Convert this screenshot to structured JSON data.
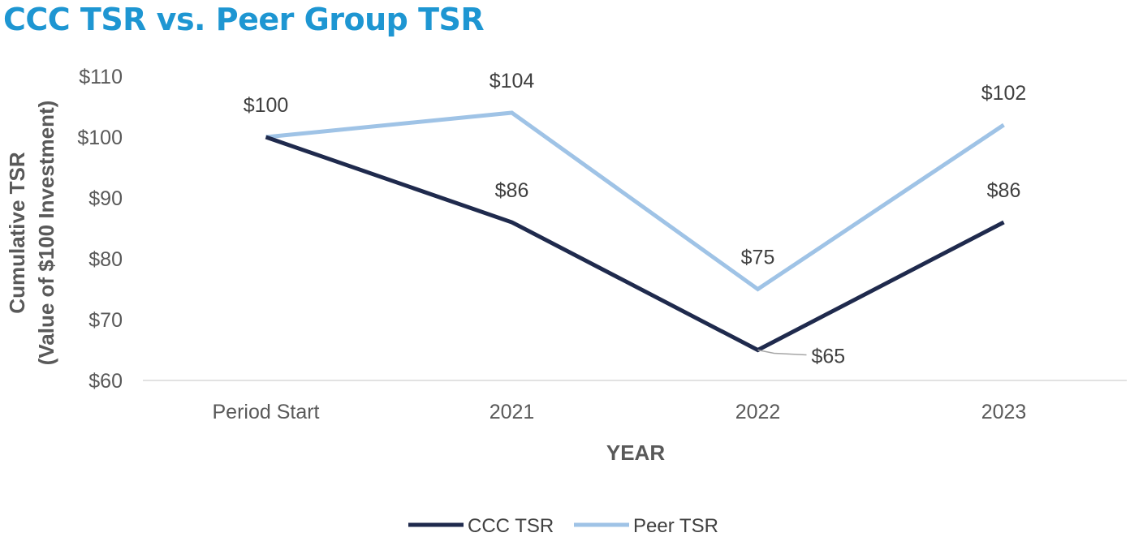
{
  "chart_data": {
    "type": "line",
    "title": "CCC TSR vs. Peer Group TSR",
    "xlabel": "YEAR",
    "ylabel_line1": "Cumulative TSR",
    "ylabel_line2": "(Value of $100 Investment)",
    "categories": [
      "Period Start",
      "2021",
      "2022",
      "2023"
    ],
    "ylim": [
      60,
      110
    ],
    "yticks": [
      60,
      70,
      80,
      90,
      100,
      110
    ],
    "ytick_labels": [
      "$60",
      "$70",
      "$80",
      "$90",
      "$100",
      "$110"
    ],
    "grid": false,
    "legend_position": "bottom",
    "series": [
      {
        "name": "CCC TSR",
        "color": "#1f2a4d",
        "values": [
          100,
          86,
          65,
          86
        ],
        "data_labels": [
          "$100",
          "$86",
          "$65",
          "$86"
        ]
      },
      {
        "name": "Peer TSR",
        "color": "#9fc3e6",
        "values": [
          100,
          104,
          75,
          102
        ],
        "data_labels": [
          "",
          "$104",
          "$75",
          "$102"
        ]
      }
    ]
  }
}
